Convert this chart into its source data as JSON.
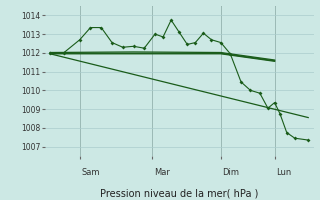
{
  "background_color": "#cce8e4",
  "grid_color": "#aacccc",
  "line_color": "#1a5c1a",
  "xlabel": "Pression niveau de la mer( hPa )",
  "ylim": [
    1006.5,
    1014.5
  ],
  "yticks": [
    1007,
    1008,
    1009,
    1010,
    1011,
    1012,
    1013,
    1014
  ],
  "day_labels": [
    "Sam",
    "Mar",
    "Dim",
    "Lun"
  ],
  "day_positions": [
    0.13,
    0.4,
    0.655,
    0.855
  ],
  "series_wavy": [
    [
      0.02,
      1012.0
    ],
    [
      0.07,
      1012.0
    ],
    [
      0.13,
      1012.7
    ],
    [
      0.17,
      1013.35
    ],
    [
      0.21,
      1013.35
    ],
    [
      0.25,
      1012.55
    ],
    [
      0.29,
      1012.3
    ],
    [
      0.33,
      1012.35
    ],
    [
      0.37,
      1012.25
    ],
    [
      0.41,
      1013.0
    ],
    [
      0.44,
      1012.85
    ],
    [
      0.47,
      1013.75
    ],
    [
      0.5,
      1013.1
    ],
    [
      0.53,
      1012.45
    ],
    [
      0.56,
      1012.55
    ],
    [
      0.59,
      1013.05
    ],
    [
      0.62,
      1012.7
    ],
    [
      0.655,
      1012.55
    ],
    [
      0.69,
      1011.95
    ],
    [
      0.73,
      1010.45
    ],
    [
      0.765,
      1010.0
    ],
    [
      0.8,
      1009.85
    ],
    [
      0.83,
      1009.05
    ],
    [
      0.855,
      1009.35
    ],
    [
      0.875,
      1008.75
    ],
    [
      0.9,
      1007.75
    ],
    [
      0.93,
      1007.45
    ],
    [
      0.98,
      1007.35
    ]
  ],
  "series_flat1": [
    [
      0.02,
      1011.95
    ],
    [
      0.655,
      1011.95
    ],
    [
      0.855,
      1011.55
    ]
  ],
  "series_flat2": [
    [
      0.02,
      1011.98
    ],
    [
      0.655,
      1011.98
    ],
    [
      0.855,
      1011.58
    ]
  ],
  "series_flat3": [
    [
      0.02,
      1012.02
    ],
    [
      0.33,
      1012.05
    ],
    [
      0.655,
      1012.02
    ],
    [
      0.855,
      1011.62
    ]
  ],
  "series_diagonal": [
    [
      0.02,
      1011.95
    ],
    [
      0.98,
      1008.55
    ]
  ]
}
